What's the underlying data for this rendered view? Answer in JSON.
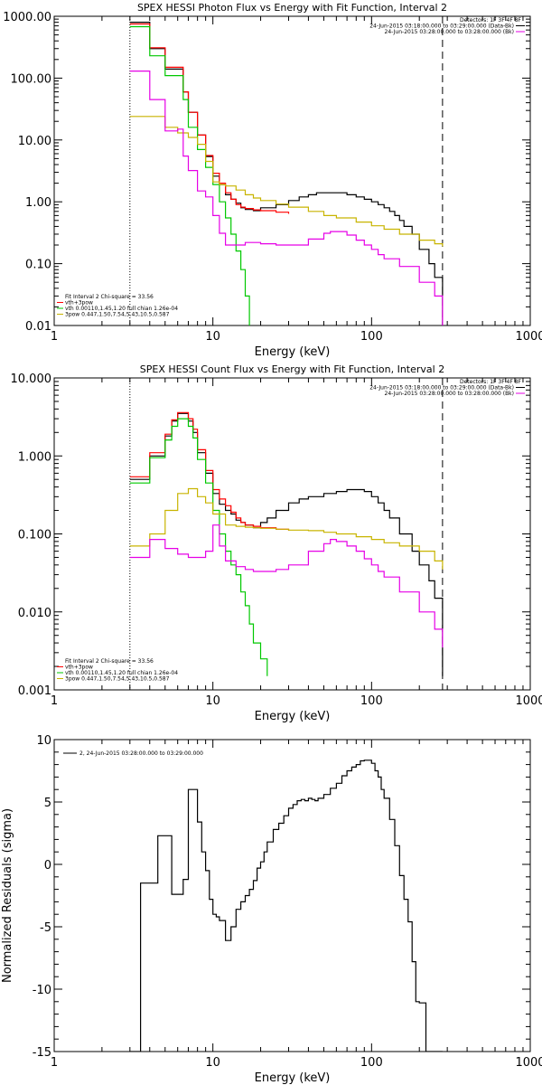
{
  "chart_data": [
    {
      "type": "line",
      "title": "SPEX HESSI Photon Flux vs Energy with Fit Function, Interval 2",
      "xlabel": "Energy (keV)",
      "ylabel": "",
      "xscale": "log",
      "yscale": "log",
      "xlim": [
        1,
        1000
      ],
      "ylim": [
        0.01,
        1000
      ],
      "x_ticks": [
        1,
        10,
        100,
        1000
      ],
      "x_tick_labels": [
        "1",
        "10",
        "100",
        "1000"
      ],
      "y_ticks": [
        0.01,
        0.1,
        1,
        10,
        100,
        1000
      ],
      "y_tick_labels": [
        "0.01",
        "0.10",
        "1.00",
        "10.00",
        "100.00",
        "1000.00"
      ],
      "vlines": [
        3,
        280
      ],
      "legend_top_right": [
        "Detectors: 1F 3F 4F 8F",
        "24-Jun-2015 03:18:00.000 to 03:29:00.000 (Data-Bk)",
        "24-Jun-2015 03:28:00.000 to 03:28:00.000 (Bk)"
      ],
      "legend_bottom_left": [
        "Fit Interval 2   Chi-square = 33.56",
        "vth+3pow",
        "vth 0.00110,1.45,1.20  full chian 1.26e-04",
        "3pow 0.447,1.50,7.54,5.43,10.5,0.587"
      ],
      "series": [
        {
          "color": "#000000",
          "x": [
            3,
            3.5,
            4,
            4.5,
            5,
            5.5,
            6,
            6.5,
            7,
            8,
            9,
            10,
            11,
            12,
            13,
            14,
            15,
            16,
            18,
            20,
            25,
            30,
            35,
            40,
            45,
            50,
            60,
            70,
            80,
            90,
            100,
            110,
            120,
            130,
            140,
            150,
            160,
            180,
            200,
            230,
            250,
            280
          ],
          "values": [
            800,
            800,
            300,
            300,
            140,
            140,
            140,
            60,
            28,
            12,
            5.4,
            2.6,
            1.9,
            1.3,
            1.1,
            0.95,
            0.8,
            0.75,
            0.72,
            0.8,
            0.9,
            1.05,
            1.2,
            1.3,
            1.4,
            1.4,
            1.4,
            1.3,
            1.2,
            1.1,
            1.0,
            0.9,
            0.8,
            0.7,
            0.6,
            0.5,
            0.4,
            0.3,
            0.17,
            0.1,
            0.06,
            0.01
          ]
        },
        {
          "color": "#ff0000",
          "x": [
            3,
            3.5,
            4,
            4.5,
            5,
            5.5,
            6,
            6.5,
            7,
            8,
            9,
            10,
            11,
            12,
            13,
            14,
            15,
            16,
            18,
            20,
            25,
            30
          ],
          "values": [
            750,
            750,
            310,
            310,
            150,
            150,
            150,
            60,
            28,
            12,
            5.6,
            2.9,
            2.0,
            1.4,
            1.1,
            0.9,
            0.82,
            0.78,
            0.74,
            0.72,
            0.68,
            0.64
          ]
        },
        {
          "color": "#00c800",
          "x": [
            3,
            3.5,
            4,
            4.5,
            5,
            5.5,
            6,
            6.5,
            7,
            8,
            9,
            10,
            11,
            12,
            13,
            14,
            15,
            16,
            17
          ],
          "values": [
            680,
            680,
            230,
            230,
            110,
            110,
            110,
            45,
            16,
            7,
            3.6,
            1.9,
            1.0,
            0.55,
            0.3,
            0.16,
            0.08,
            0.03,
            0.01
          ]
        },
        {
          "color": "#c8b400",
          "x": [
            3,
            4,
            5,
            6,
            7,
            8,
            9,
            10,
            11,
            12,
            14,
            16,
            18,
            20,
            25,
            30,
            40,
            50,
            60,
            80,
            100,
            120,
            150,
            200,
            250,
            280
          ],
          "values": [
            24,
            24,
            16,
            13,
            11,
            8.5,
            4.5,
            2.1,
            1.9,
            1.8,
            1.55,
            1.3,
            1.15,
            1.05,
            0.92,
            0.82,
            0.7,
            0.6,
            0.55,
            0.47,
            0.41,
            0.36,
            0.3,
            0.24,
            0.21,
            0.19
          ]
        },
        {
          "color": "#e600e6",
          "x": [
            3,
            3.5,
            4,
            4.5,
            5,
            5.5,
            6,
            6.5,
            7,
            8,
            9,
            10,
            11,
            12,
            14,
            16,
            18,
            20,
            25,
            30,
            40,
            50,
            55,
            60,
            70,
            80,
            90,
            100,
            110,
            120,
            150,
            200,
            250,
            280
          ],
          "values": [
            130,
            130,
            45,
            45,
            14,
            14,
            15,
            5.5,
            3.2,
            1.5,
            1.2,
            0.6,
            0.31,
            0.2,
            0.2,
            0.22,
            0.22,
            0.21,
            0.2,
            0.2,
            0.25,
            0.31,
            0.33,
            0.33,
            0.29,
            0.24,
            0.2,
            0.17,
            0.14,
            0.12,
            0.09,
            0.05,
            0.03,
            0.01
          ]
        }
      ]
    },
    {
      "type": "line",
      "title": "SPEX HESSI Count Flux vs Energy with Fit Function, Interval 2",
      "xlabel": "Energy (keV)",
      "ylabel": "",
      "xscale": "log",
      "yscale": "log",
      "xlim": [
        1,
        1000
      ],
      "ylim": [
        0.001,
        10
      ],
      "x_ticks": [
        1,
        10,
        100,
        1000
      ],
      "x_tick_labels": [
        "1",
        "10",
        "100",
        "1000"
      ],
      "y_ticks": [
        0.001,
        0.01,
        0.1,
        1,
        10
      ],
      "y_tick_labels": [
        "0.001",
        "0.010",
        "0.100",
        "1.000",
        "10.000"
      ],
      "vlines": [
        3,
        280
      ],
      "legend_top_right": [
        "Detectors: 1F 3F 4F 8F",
        "24-Jun-2015 03:18:00.000 to 03:29:00.000 (Data-Bk)",
        "24-Jun-2015 03:28:00.000 to 03:28:00.000 (Bk)"
      ],
      "legend_bottom_left": [
        "Fit Interval 2   Chi-square = 33.56",
        "vth+3pow",
        "vth 0.00110,1.45,1.20  full chian 1.26e-04",
        "3pow 0.447,1.50,7.54,5.43,10.5,0.587"
      ],
      "series": [
        {
          "color": "#000000",
          "x": [
            3,
            3.5,
            4,
            4.5,
            5,
            5.5,
            6,
            6.5,
            7,
            7.5,
            8,
            9,
            10,
            11,
            12,
            13,
            14,
            15,
            16,
            18,
            20,
            22,
            25,
            30,
            35,
            40,
            50,
            60,
            70,
            80,
            90,
            100,
            110,
            120,
            130,
            150,
            180,
            200,
            230,
            250,
            280
          ],
          "values": [
            0.5,
            0.5,
            1.0,
            1.0,
            1.8,
            2.8,
            3.5,
            3.5,
            2.8,
            2.0,
            1.1,
            0.6,
            0.33,
            0.24,
            0.2,
            0.18,
            0.15,
            0.14,
            0.13,
            0.12,
            0.14,
            0.16,
            0.2,
            0.25,
            0.28,
            0.3,
            0.33,
            0.35,
            0.37,
            0.37,
            0.35,
            0.3,
            0.25,
            0.2,
            0.16,
            0.1,
            0.06,
            0.04,
            0.025,
            0.015,
            0.0015
          ]
        },
        {
          "color": "#ff0000",
          "x": [
            3,
            3.5,
            4,
            4.5,
            5,
            5.5,
            6,
            6.5,
            7,
            7.5,
            8,
            9,
            10,
            11,
            12,
            13,
            14,
            15,
            16,
            18,
            20,
            25,
            30
          ],
          "values": [
            0.54,
            0.54,
            1.1,
            1.1,
            1.9,
            2.9,
            3.6,
            3.6,
            3.0,
            2.2,
            1.2,
            0.65,
            0.37,
            0.28,
            0.23,
            0.19,
            0.16,
            0.14,
            0.13,
            0.125,
            0.12,
            0.115,
            0.11
          ]
        },
        {
          "color": "#00c800",
          "x": [
            3,
            3.5,
            4,
            4.5,
            5,
            5.5,
            6,
            6.5,
            7,
            7.5,
            8,
            9,
            10,
            11,
            12,
            13,
            14,
            15,
            16,
            17,
            18,
            20,
            22
          ],
          "values": [
            0.45,
            0.45,
            0.95,
            0.95,
            1.6,
            2.4,
            3.0,
            3.0,
            2.4,
            1.7,
            0.9,
            0.45,
            0.2,
            0.1,
            0.06,
            0.04,
            0.03,
            0.018,
            0.012,
            0.007,
            0.004,
            0.0025,
            0.0015
          ]
        },
        {
          "color": "#c8b400",
          "x": [
            3,
            3.5,
            4,
            5,
            6,
            7,
            8,
            9,
            10,
            12,
            14,
            16,
            18,
            20,
            25,
            30,
            40,
            50,
            60,
            80,
            100,
            120,
            150,
            200,
            250,
            280
          ],
          "values": [
            0.07,
            0.07,
            0.1,
            0.2,
            0.33,
            0.38,
            0.3,
            0.25,
            0.18,
            0.13,
            0.125,
            0.122,
            0.12,
            0.118,
            0.115,
            0.112,
            0.11,
            0.105,
            0.1,
            0.092,
            0.085,
            0.077,
            0.07,
            0.06,
            0.045,
            0.035
          ]
        },
        {
          "color": "#e600e6",
          "x": [
            3,
            3.5,
            4,
            5,
            6,
            7,
            8,
            9,
            10,
            11,
            12,
            14,
            16,
            18,
            20,
            25,
            30,
            40,
            50,
            55,
            60,
            70,
            80,
            90,
            100,
            110,
            120,
            150,
            200,
            250,
            280
          ],
          "values": [
            0.05,
            0.05,
            0.085,
            0.065,
            0.055,
            0.05,
            0.05,
            0.06,
            0.13,
            0.07,
            0.045,
            0.038,
            0.035,
            0.033,
            0.033,
            0.035,
            0.04,
            0.06,
            0.075,
            0.085,
            0.08,
            0.07,
            0.06,
            0.048,
            0.04,
            0.033,
            0.028,
            0.018,
            0.01,
            0.006,
            0.0035
          ]
        }
      ]
    },
    {
      "type": "line",
      "title": "",
      "xlabel": "Energy (keV)",
      "ylabel": "Normalized Residuals (sigma)",
      "xscale": "log",
      "yscale": "linear",
      "xlim": [
        1,
        1000
      ],
      "ylim": [
        -15,
        10
      ],
      "x_ticks": [
        1,
        10,
        100,
        1000
      ],
      "x_tick_labels": [
        "1",
        "10",
        "100",
        "1000"
      ],
      "y_ticks": [
        -15,
        -10,
        -5,
        0,
        5,
        10
      ],
      "y_tick_labels": [
        "-15",
        "-10",
        "-5",
        "0",
        "5",
        "10"
      ],
      "legend": "2, 24-Jun-2015 03:28:00.000 to 03:29:00.000",
      "series": [
        {
          "color": "#000000",
          "x": [
            3,
            3.5,
            4,
            4.5,
            5,
            5.5,
            6,
            6.5,
            7,
            7.5,
            8,
            8.5,
            9,
            9.5,
            10,
            10.5,
            11,
            12,
            13,
            14,
            15,
            16,
            17,
            18,
            19,
            20,
            21,
            22,
            24,
            26,
            28,
            30,
            32,
            34,
            36,
            38,
            40,
            42,
            44,
            46,
            50,
            55,
            60,
            65,
            70,
            75,
            80,
            85,
            90,
            95,
            100,
            105,
            110,
            115,
            120,
            130,
            140,
            150,
            160,
            170,
            180,
            190,
            200,
            220,
            240,
            260,
            280
          ],
          "values": [
            -15,
            -1.5,
            -1.5,
            2.3,
            2.3,
            -2.4,
            -2.4,
            -1.2,
            6.0,
            6.0,
            3.4,
            1.0,
            -0.5,
            -2.8,
            -4.0,
            -4.2,
            -4.5,
            -6.1,
            -5.0,
            -3.6,
            -3.0,
            -2.5,
            -2.0,
            -1.3,
            -0.3,
            0.2,
            1.0,
            1.8,
            2.8,
            3.3,
            3.9,
            4.5,
            4.8,
            5.1,
            5.2,
            5.1,
            5.3,
            5.2,
            5.1,
            5.3,
            5.6,
            6.1,
            6.5,
            7.1,
            7.5,
            7.8,
            8.0,
            8.3,
            8.35,
            8.35,
            8.1,
            7.5,
            7.0,
            6.0,
            5.3,
            3.6,
            1.5,
            -0.9,
            -2.8,
            -4.6,
            -7.8,
            -11.0,
            -11.1,
            -15,
            -15,
            -15,
            -15
          ]
        }
      ]
    }
  ]
}
